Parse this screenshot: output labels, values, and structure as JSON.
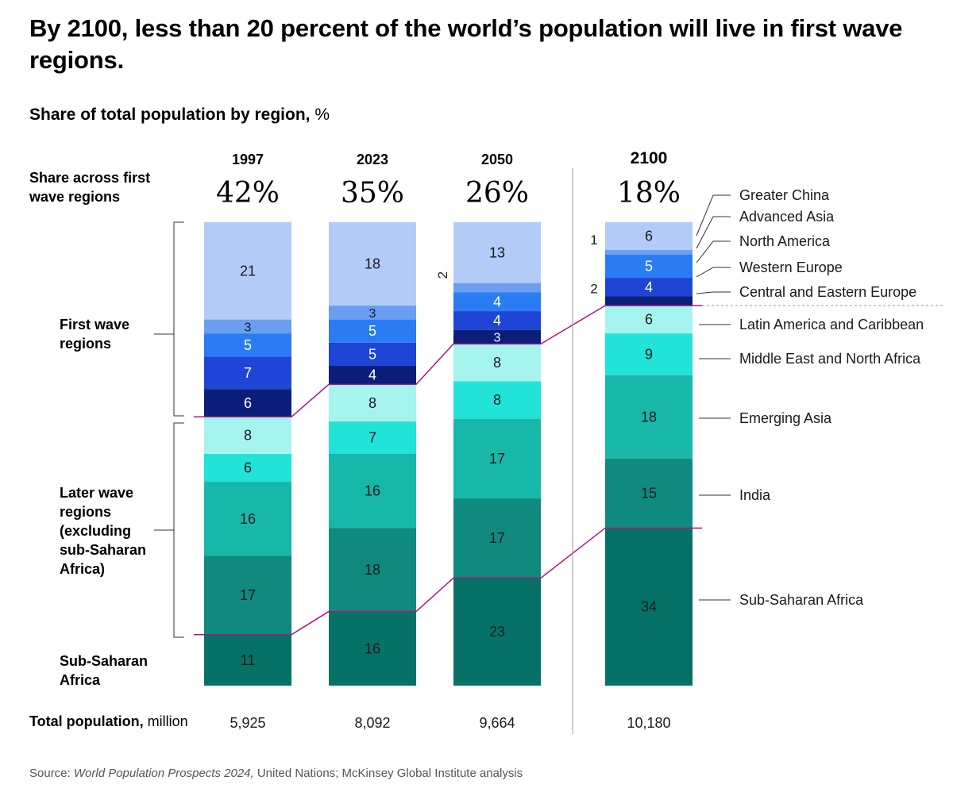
{
  "title": "By 2100, less than 20 percent of the world’s population will live in first wave regions.",
  "subtitle": "Share of total population by region,",
  "subtitle_unit": "%",
  "share_label": "Share across first wave regions",
  "group_labels": {
    "first_wave": "First wave regions",
    "later_wave": "Later wave regions (excluding sub-Saharan Africa)",
    "ssa": "Sub-Saharan Africa"
  },
  "total_label": "Total population,",
  "total_unit": "million",
  "source_prefix": "Source: ",
  "source_italic": "World Population Prospects 2024,",
  "source_rest": " United Nations; McKinsey Global Institute analysis",
  "chart_data": {
    "type": "bar",
    "stacked": true,
    "title": "Share of total population by region, %",
    "categories": [
      "1997",
      "2023",
      "2050",
      "2100"
    ],
    "first_wave_share_labels": [
      "42%",
      "35%",
      "26%",
      "18%"
    ],
    "totals_million": [
      "5,925",
      "8,092",
      "9,664",
      "10,180"
    ],
    "series": [
      {
        "name": "Greater China",
        "color": "#b2ccf7",
        "values": [
          21,
          18,
          13,
          6
        ]
      },
      {
        "name": "Advanced Asia",
        "color": "#6b9ef1",
        "values": [
          3,
          3,
          2,
          1
        ]
      },
      {
        "name": "North America",
        "color": "#2b7cf2",
        "values": [
          5,
          5,
          4,
          5
        ]
      },
      {
        "name": "Western Europe",
        "color": "#1f45d6",
        "values": [
          7,
          5,
          4,
          4
        ]
      },
      {
        "name": "Central and Eastern Europe",
        "color": "#0a1e7a",
        "values": [
          6,
          4,
          3,
          2
        ]
      },
      {
        "name": "Latin America and Caribbean",
        "color": "#a6f4ee",
        "values": [
          8,
          8,
          8,
          6
        ]
      },
      {
        "name": "Middle East and North Africa",
        "color": "#22e3d8",
        "values": [
          6,
          7,
          8,
          9
        ]
      },
      {
        "name": "Emerging Asia",
        "color": "#17b8aa",
        "values": [
          16,
          16,
          17,
          18
        ]
      },
      {
        "name": "India",
        "color": "#108a7f",
        "values": [
          17,
          18,
          17,
          15
        ]
      },
      {
        "name": "Sub-Saharan Africa",
        "color": "#067267",
        "values": [
          11,
          16,
          23,
          34
        ]
      }
    ],
    "legend_placement": "right",
    "first_wave_series_count": 5
  }
}
